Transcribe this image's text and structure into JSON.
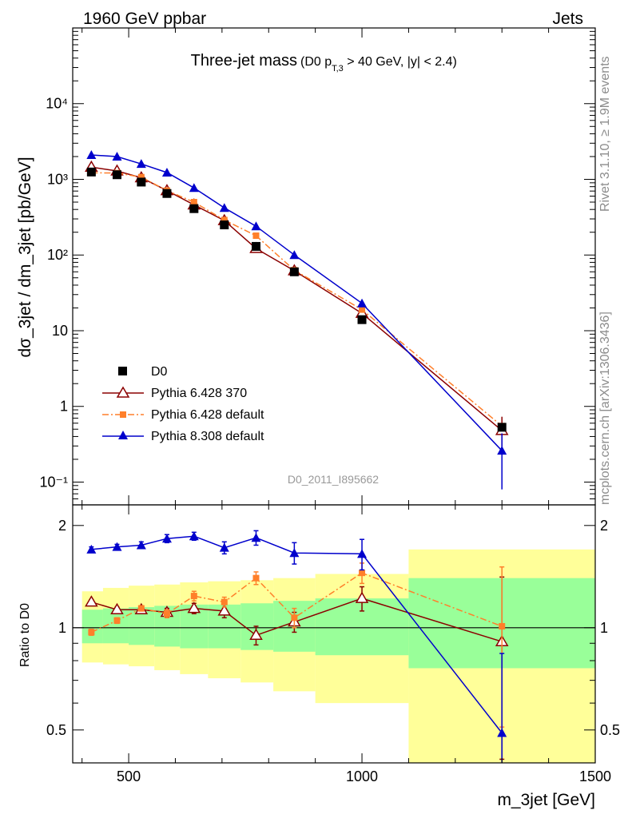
{
  "header": {
    "left": "1960 GeV ppbar",
    "right": "Jets",
    "side_top": "Rivet 3.1.10, ≥ 1.9M events",
    "side_bottom": "mcplots.cern.ch [arXiv:1306.3436]",
    "analysis_id": "D0_2011_I895662"
  },
  "colors": {
    "data": "#000000",
    "py6_370": "#8b0000",
    "py6_default": "#ff7f2a",
    "py8_default": "#0000cc",
    "band_inner": "#99ff99",
    "band_outer": "#ffff99"
  },
  "chart_data": [
    {
      "type": "line",
      "title": "Three-jet mass",
      "title_cut": "(D0 p_T,3 > 40 GeV, |y| < 2.4)",
      "ylabel": "dσ_3jet / dm_3jet [pb/GeV]",
      "xlabel": "m_3jet [GeV]",
      "xlim": [
        380,
        1500
      ],
      "ylim": [
        0.05,
        100000
      ],
      "yscale": "log",
      "grid": false,
      "legend_position": "bottom-left",
      "y_ticks": [
        {
          "value": 0.1,
          "label": "10⁻¹"
        },
        {
          "value": 1,
          "label": "1"
        },
        {
          "value": 10,
          "label": "10"
        },
        {
          "value": 100,
          "label": "10²"
        },
        {
          "value": 1000,
          "label": "10³"
        },
        {
          "value": 10000,
          "label": "10⁴"
        }
      ],
      "series": [
        {
          "name": "D0",
          "style": "data",
          "x": [
            420,
            475,
            527,
            582,
            640,
            705,
            773,
            855,
            1000,
            1300
          ],
          "y": [
            1250,
            1150,
            920,
            650,
            410,
            250,
            130,
            60,
            14,
            0.53
          ]
        },
        {
          "name": "Pythia 6.428 370",
          "style": "py6_370",
          "x": [
            420,
            475,
            527,
            582,
            640,
            705,
            773,
            855,
            1000,
            1300
          ],
          "y": [
            1450,
            1290,
            1050,
            710,
            460,
            285,
            122,
            62,
            17,
            0.48
          ],
          "yerr": [
            0,
            0,
            0,
            0,
            0,
            0,
            0,
            0,
            0,
            0.25
          ]
        },
        {
          "name": "Pythia 6.428 default",
          "style": "py6_default",
          "x": [
            420,
            475,
            527,
            582,
            640,
            705,
            773,
            855,
            1000,
            1300
          ],
          "y": [
            1220,
            1210,
            1070,
            710,
            500,
            290,
            180,
            63,
            19,
            0.55
          ]
        },
        {
          "name": "Pythia 8.308 default",
          "style": "py8_default",
          "x": [
            420,
            475,
            527,
            582,
            640,
            705,
            773,
            855,
            1000,
            1300
          ],
          "y": [
            2100,
            2000,
            1600,
            1230,
            770,
            420,
            240,
            100,
            23,
            0.26
          ],
          "yerr": [
            0,
            0,
            0,
            0,
            0,
            0,
            0,
            0,
            0,
            0.18
          ]
        }
      ]
    },
    {
      "type": "line",
      "ylabel": "Ratio to D0",
      "xlabel": "m_3jet [GeV]",
      "xlim": [
        380,
        1500
      ],
      "ylim": [
        0.4,
        2.3
      ],
      "yscale": "log",
      "y_ticks": [
        {
          "value": 0.5,
          "label": "0.5"
        },
        {
          "value": 1,
          "label": "1"
        },
        {
          "value": 2,
          "label": "2"
        }
      ],
      "x_ticks": [
        {
          "value": 500,
          "label": "500"
        },
        {
          "value": 1000,
          "label": "1000"
        },
        {
          "value": 1500,
          "label": "1500"
        }
      ],
      "bands": {
        "edges": [
          400,
          445,
          500,
          555,
          610,
          670,
          740,
          810,
          900,
          1100,
          1500
        ],
        "inner_low": [
          0.9,
          0.9,
          0.89,
          0.88,
          0.87,
          0.87,
          0.86,
          0.85,
          0.83,
          0.76
        ],
        "inner_high": [
          1.13,
          1.14,
          1.15,
          1.16,
          1.17,
          1.17,
          1.18,
          1.2,
          1.22,
          1.4
        ],
        "outer_low": [
          0.79,
          0.78,
          0.77,
          0.75,
          0.73,
          0.71,
          0.69,
          0.65,
          0.6,
          0.37
        ],
        "outer_high": [
          1.28,
          1.31,
          1.33,
          1.34,
          1.36,
          1.37,
          1.38,
          1.4,
          1.44,
          1.7
        ]
      },
      "series": [
        {
          "name": "Pythia 6.428 370",
          "style": "py6_370",
          "x": [
            420,
            475,
            527,
            582,
            640,
            705,
            773,
            855,
            1000,
            1300
          ],
          "y": [
            1.19,
            1.13,
            1.13,
            1.11,
            1.14,
            1.12,
            0.95,
            1.04,
            1.22,
            0.91
          ],
          "yerr": [
            0.02,
            0.02,
            0.03,
            0.03,
            0.04,
            0.05,
            0.06,
            0.07,
            0.1,
            0.5
          ]
        },
        {
          "name": "Pythia 6.428 default",
          "style": "py6_default",
          "x": [
            420,
            475,
            527,
            582,
            640,
            705,
            773,
            855,
            1000,
            1300
          ],
          "y": [
            0.97,
            1.05,
            1.14,
            1.1,
            1.24,
            1.19,
            1.4,
            1.07,
            1.45,
            1.01
          ],
          "yerr": [
            0.02,
            0.02,
            0.02,
            0.03,
            0.04,
            0.04,
            0.06,
            0.07,
            0.1,
            0.5
          ]
        },
        {
          "name": "Pythia 8.308 default",
          "style": "py8_default",
          "x": [
            420,
            475,
            527,
            582,
            640,
            705,
            773,
            855,
            1000,
            1300
          ],
          "y": [
            1.7,
            1.73,
            1.75,
            1.83,
            1.86,
            1.72,
            1.84,
            1.66,
            1.65,
            0.49
          ],
          "yerr": [
            0.03,
            0.03,
            0.04,
            0.05,
            0.05,
            0.07,
            0.09,
            0.12,
            0.17,
            0.35
          ]
        }
      ]
    }
  ]
}
